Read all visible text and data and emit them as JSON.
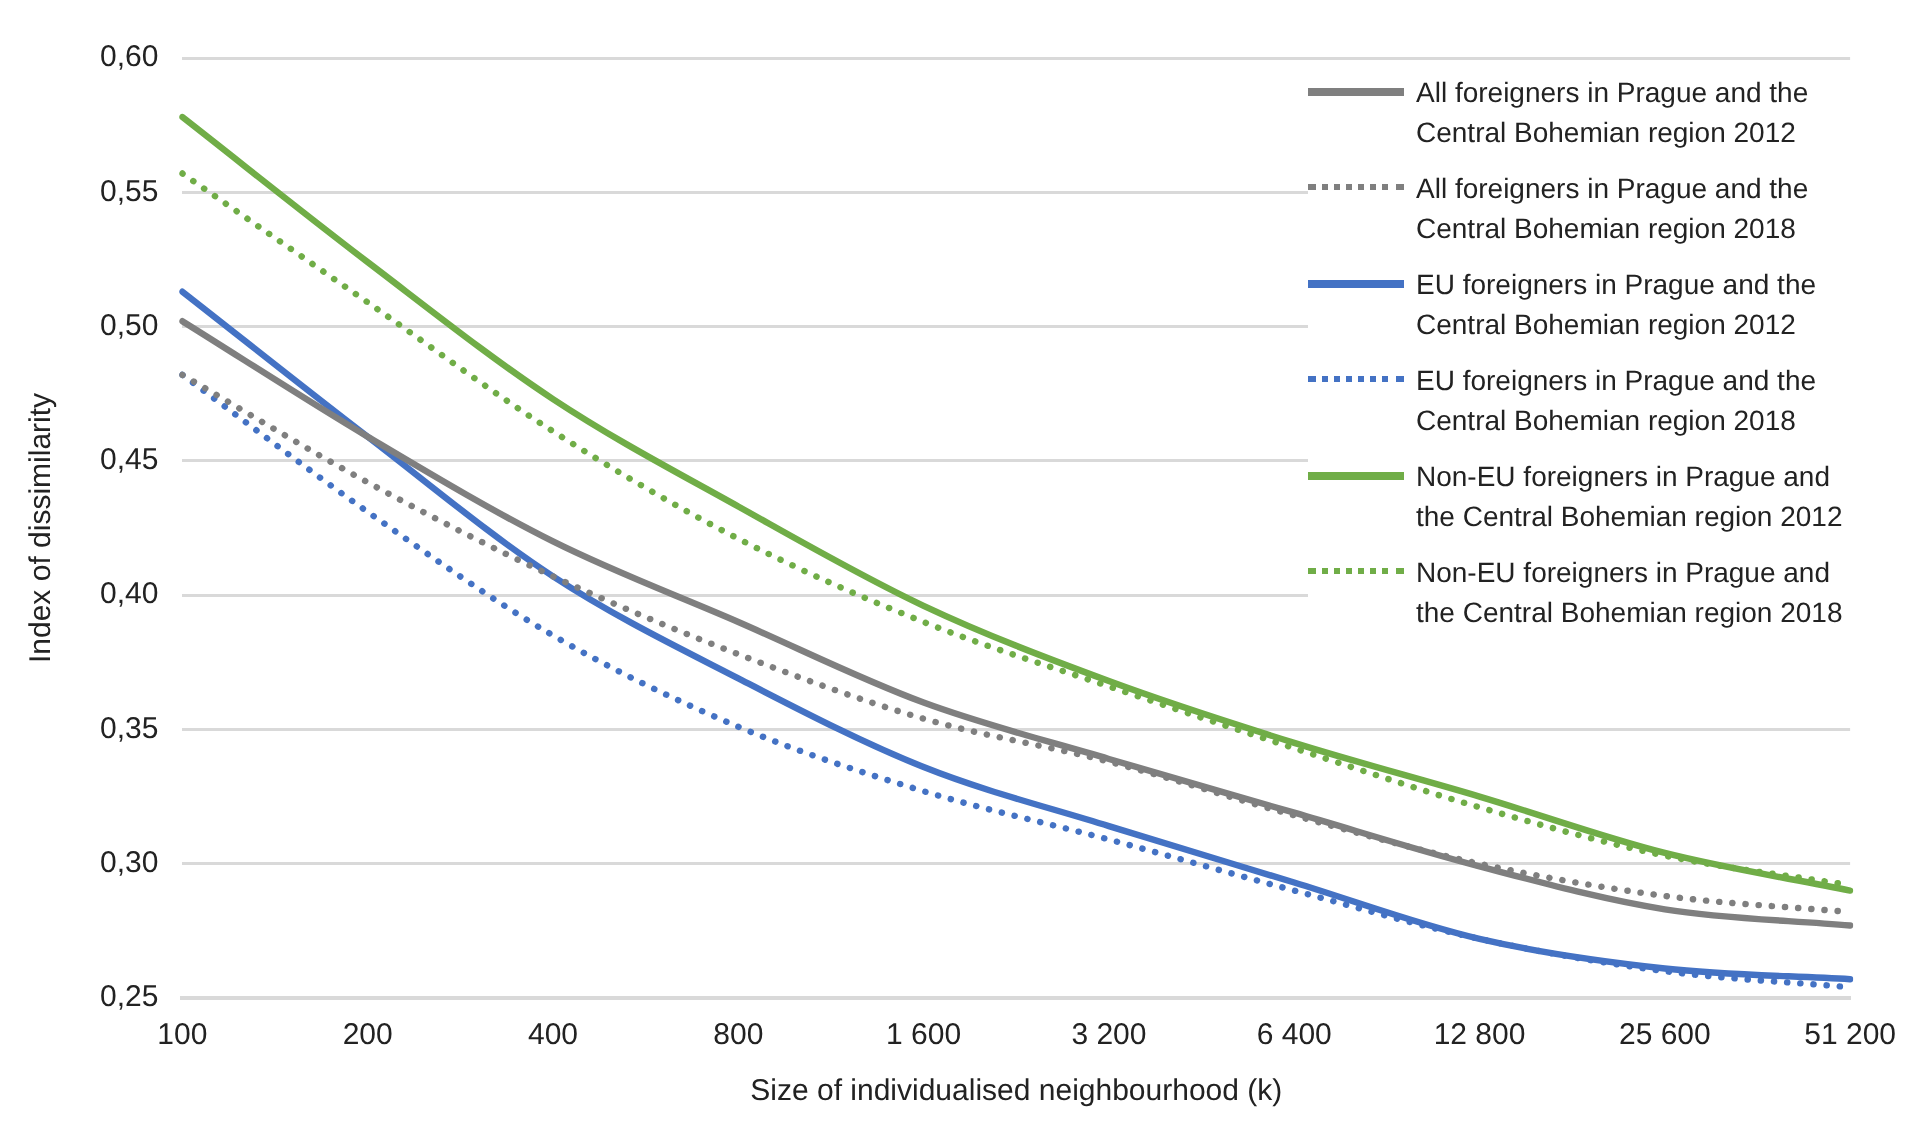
{
  "chart_data": {
    "type": "line",
    "xlabel": "Size of individualised neighbourhood (k)",
    "ylabel": "Index of dissimilarity",
    "categories": [
      "100",
      "200",
      "400",
      "800",
      "1 600",
      "3 200",
      "6 400",
      "12 800",
      "25 600",
      "51 200"
    ],
    "series": [
      {
        "name": "All foreigners in Prague and the Central Bohemian region 2012",
        "color": "#7f7f7f",
        "line_style": "solid",
        "values": [
          0.502,
          0.459,
          0.42,
          0.39,
          0.36,
          0.339,
          0.319,
          0.299,
          0.283,
          0.277
        ]
      },
      {
        "name": "All foreigners in Prague and the Central Bohemian region 2018",
        "color": "#7f7f7f",
        "line_style": "dotted",
        "values": [
          0.482,
          0.442,
          0.407,
          0.378,
          0.354,
          0.338,
          0.318,
          0.3,
          0.288,
          0.282
        ]
      },
      {
        "name": "EU foreigners in Prague and the Central Bohemian region 2012",
        "color": "#4472c4",
        "line_style": "solid",
        "values": [
          0.513,
          0.459,
          0.407,
          0.369,
          0.336,
          0.314,
          0.293,
          0.272,
          0.261,
          0.257
        ]
      },
      {
        "name": "EU foreigners in Prague and the Central Bohemian region 2018",
        "color": "#4472c4",
        "line_style": "dotted",
        "values": [
          0.482,
          0.431,
          0.385,
          0.351,
          0.327,
          0.309,
          0.29,
          0.272,
          0.26,
          0.254
        ]
      },
      {
        "name": "Non-EU foreigners in Prague and the Central Bohemian region 2012",
        "color": "#70ad47",
        "line_style": "solid",
        "values": [
          0.578,
          0.524,
          0.473,
          0.433,
          0.396,
          0.368,
          0.345,
          0.325,
          0.304,
          0.29
        ]
      },
      {
        "name": "Non-EU foreigners in Prague and the Central Bohemian region 2018",
        "color": "#70ad47",
        "line_style": "dotted",
        "values": [
          0.557,
          0.509,
          0.461,
          0.421,
          0.39,
          0.366,
          0.343,
          0.321,
          0.303,
          0.292
        ]
      }
    ],
    "ylim": [
      0.25,
      0.6
    ],
    "yticks": [
      {
        "value": 0.25,
        "label": "0,25"
      },
      {
        "value": 0.3,
        "label": "0,30"
      },
      {
        "value": 0.35,
        "label": "0,35"
      },
      {
        "value": 0.4,
        "label": "0,40"
      },
      {
        "value": 0.45,
        "label": "0,45"
      },
      {
        "value": 0.5,
        "label": "0,50"
      },
      {
        "value": 0.55,
        "label": "0,55"
      },
      {
        "value": 0.6,
        "label": "0,60"
      }
    ],
    "grid": "y",
    "legend": "top right",
    "marker": "none"
  }
}
